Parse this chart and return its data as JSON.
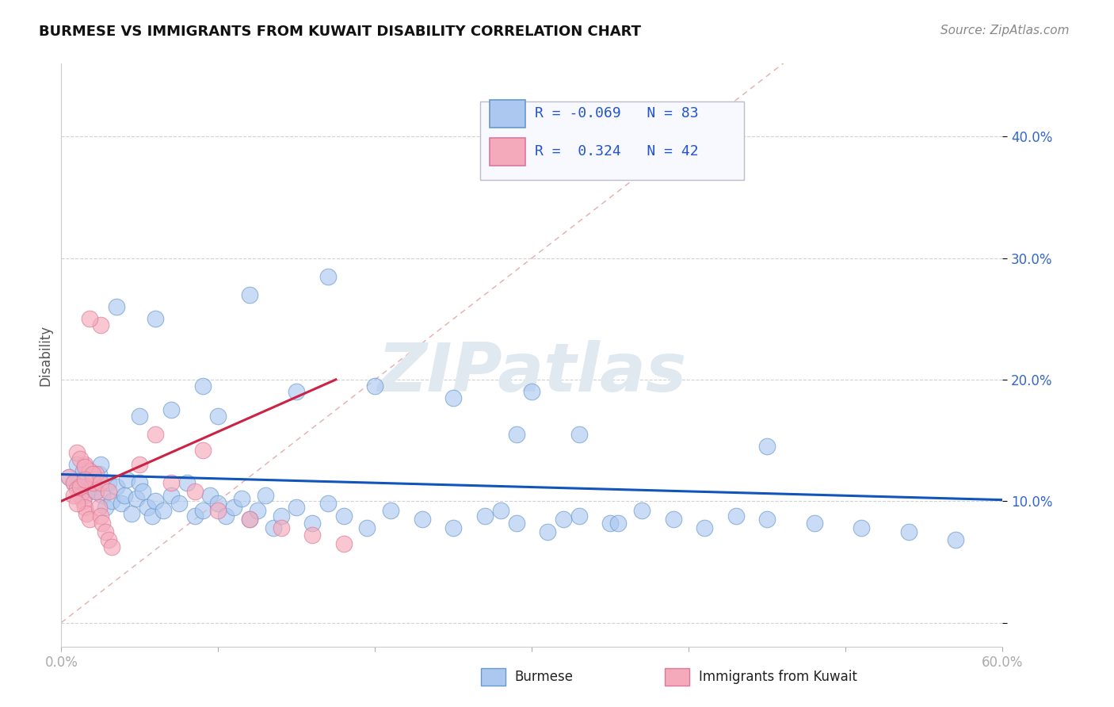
{
  "title": "BURMESE VS IMMIGRANTS FROM KUWAIT DISABILITY CORRELATION CHART",
  "source": "Source: ZipAtlas.com",
  "ylabel": "Disability",
  "xlim": [
    0.0,
    0.6
  ],
  "ylim": [
    -0.02,
    0.46
  ],
  "y_ticks": [
    0.0,
    0.1,
    0.2,
    0.3,
    0.4
  ],
  "y_tick_labels": [
    "",
    "10.0%",
    "20.0%",
    "30.0%",
    "40.0%"
  ],
  "x_ticks": [
    0.0,
    0.1,
    0.2,
    0.3,
    0.4,
    0.5,
    0.6
  ],
  "x_tick_labels": [
    "0.0%",
    "",
    "",
    "",
    "",
    "",
    "60.0%"
  ],
  "grid_color": "#cccccc",
  "background_color": "#ffffff",
  "watermark": "ZIPatlas",
  "legend_r_blue": "-0.069",
  "legend_n_blue": "83",
  "legend_r_pink": "0.324",
  "legend_n_pink": "42",
  "blue_color": "#adc8f0",
  "blue_edge": "#6699cc",
  "pink_color": "#f5aabb",
  "pink_edge": "#dd7799",
  "trend_blue_color": "#1155bb",
  "trend_pink_color": "#cc2244",
  "ref_line_color": "#dd9999",
  "trend_blue": [
    0.0,
    0.6,
    0.122,
    0.101
  ],
  "trend_pink": [
    0.0,
    0.175,
    0.1,
    0.2
  ],
  "blue_x": [
    0.005,
    0.008,
    0.01,
    0.012,
    0.014,
    0.015,
    0.016,
    0.018,
    0.02,
    0.022,
    0.024,
    0.025,
    0.026,
    0.028,
    0.03,
    0.032,
    0.035,
    0.038,
    0.04,
    0.042,
    0.045,
    0.048,
    0.05,
    0.052,
    0.055,
    0.058,
    0.06,
    0.065,
    0.07,
    0.075,
    0.08,
    0.085,
    0.09,
    0.095,
    0.1,
    0.105,
    0.11,
    0.115,
    0.12,
    0.125,
    0.13,
    0.135,
    0.14,
    0.15,
    0.16,
    0.17,
    0.18,
    0.195,
    0.21,
    0.23,
    0.25,
    0.27,
    0.29,
    0.31,
    0.33,
    0.35,
    0.37,
    0.39,
    0.41,
    0.43,
    0.45,
    0.48,
    0.51,
    0.54,
    0.57,
    0.28,
    0.32,
    0.355,
    0.035,
    0.06,
    0.09,
    0.12,
    0.15,
    0.2,
    0.25,
    0.05,
    0.07,
    0.1,
    0.29,
    0.45,
    0.3,
    0.17,
    0.33
  ],
  "blue_y": [
    0.12,
    0.115,
    0.13,
    0.11,
    0.125,
    0.105,
    0.12,
    0.11,
    0.115,
    0.108,
    0.122,
    0.13,
    0.105,
    0.095,
    0.115,
    0.1,
    0.112,
    0.098,
    0.105,
    0.118,
    0.09,
    0.102,
    0.115,
    0.108,
    0.095,
    0.088,
    0.1,
    0.092,
    0.105,
    0.098,
    0.115,
    0.088,
    0.092,
    0.105,
    0.098,
    0.088,
    0.095,
    0.102,
    0.085,
    0.092,
    0.105,
    0.078,
    0.088,
    0.095,
    0.082,
    0.098,
    0.088,
    0.078,
    0.092,
    0.085,
    0.078,
    0.088,
    0.082,
    0.075,
    0.088,
    0.082,
    0.092,
    0.085,
    0.078,
    0.088,
    0.085,
    0.082,
    0.078,
    0.075,
    0.068,
    0.092,
    0.085,
    0.082,
    0.26,
    0.25,
    0.195,
    0.27,
    0.19,
    0.195,
    0.185,
    0.17,
    0.175,
    0.17,
    0.155,
    0.145,
    0.19,
    0.285,
    0.155
  ],
  "pink_x": [
    0.005,
    0.008,
    0.01,
    0.012,
    0.014,
    0.015,
    0.016,
    0.018,
    0.02,
    0.022,
    0.024,
    0.025,
    0.026,
    0.028,
    0.03,
    0.032,
    0.015,
    0.018,
    0.02,
    0.022,
    0.01,
    0.012,
    0.015,
    0.02,
    0.025,
    0.03,
    0.008,
    0.01,
    0.012,
    0.015,
    0.05,
    0.07,
    0.085,
    0.1,
    0.12,
    0.14,
    0.16,
    0.18,
    0.06,
    0.09,
    0.025,
    0.018
  ],
  "pink_y": [
    0.12,
    0.115,
    0.11,
    0.105,
    0.1,
    0.095,
    0.09,
    0.085,
    0.118,
    0.108,
    0.095,
    0.088,
    0.082,
    0.075,
    0.068,
    0.062,
    0.13,
    0.125,
    0.115,
    0.122,
    0.14,
    0.135,
    0.128,
    0.122,
    0.115,
    0.108,
    0.105,
    0.098,
    0.112,
    0.118,
    0.13,
    0.115,
    0.108,
    0.092,
    0.085,
    0.078,
    0.072,
    0.065,
    0.155,
    0.142,
    0.245,
    0.25
  ]
}
